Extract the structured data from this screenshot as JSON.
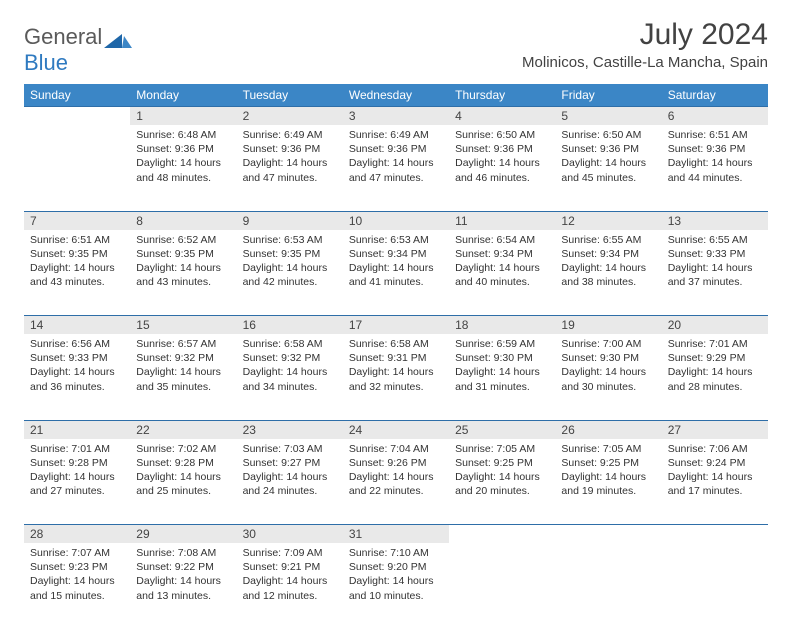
{
  "brand": {
    "part1": "General",
    "part2": "Blue"
  },
  "title": "July 2024",
  "location": "Molinicos, Castille-La Mancha, Spain",
  "colors": {
    "header_bg": "#3b86c6",
    "header_text": "#ffffff",
    "daynum_bg": "#e9e9e9",
    "rule": "#2e6ea8",
    "logo_gray": "#5a5a5a",
    "logo_blue": "#2f7ac0",
    "body_text": "#333333",
    "page_bg": "#ffffff"
  },
  "typography": {
    "title_fontsize": 30,
    "location_fontsize": 15,
    "dayheader_fontsize": 12,
    "daynum_fontsize": 12,
    "cell_fontsize": 10.5
  },
  "day_headers": [
    "Sunday",
    "Monday",
    "Tuesday",
    "Wednesday",
    "Thursday",
    "Friday",
    "Saturday"
  ],
  "weeks": [
    {
      "nums": [
        "",
        "1",
        "2",
        "3",
        "4",
        "5",
        "6"
      ],
      "sunrise": [
        "",
        "Sunrise: 6:48 AM",
        "Sunrise: 6:49 AM",
        "Sunrise: 6:49 AM",
        "Sunrise: 6:50 AM",
        "Sunrise: 6:50 AM",
        "Sunrise: 6:51 AM"
      ],
      "sunset": [
        "",
        "Sunset: 9:36 PM",
        "Sunset: 9:36 PM",
        "Sunset: 9:36 PM",
        "Sunset: 9:36 PM",
        "Sunset: 9:36 PM",
        "Sunset: 9:36 PM"
      ],
      "day1": [
        "",
        "Daylight: 14 hours",
        "Daylight: 14 hours",
        "Daylight: 14 hours",
        "Daylight: 14 hours",
        "Daylight: 14 hours",
        "Daylight: 14 hours"
      ],
      "day2": [
        "",
        "and 48 minutes.",
        "and 47 minutes.",
        "and 47 minutes.",
        "and 46 minutes.",
        "and 45 minutes.",
        "and 44 minutes."
      ]
    },
    {
      "nums": [
        "7",
        "8",
        "9",
        "10",
        "11",
        "12",
        "13"
      ],
      "sunrise": [
        "Sunrise: 6:51 AM",
        "Sunrise: 6:52 AM",
        "Sunrise: 6:53 AM",
        "Sunrise: 6:53 AM",
        "Sunrise: 6:54 AM",
        "Sunrise: 6:55 AM",
        "Sunrise: 6:55 AM"
      ],
      "sunset": [
        "Sunset: 9:35 PM",
        "Sunset: 9:35 PM",
        "Sunset: 9:35 PM",
        "Sunset: 9:34 PM",
        "Sunset: 9:34 PM",
        "Sunset: 9:34 PM",
        "Sunset: 9:33 PM"
      ],
      "day1": [
        "Daylight: 14 hours",
        "Daylight: 14 hours",
        "Daylight: 14 hours",
        "Daylight: 14 hours",
        "Daylight: 14 hours",
        "Daylight: 14 hours",
        "Daylight: 14 hours"
      ],
      "day2": [
        "and 43 minutes.",
        "and 43 minutes.",
        "and 42 minutes.",
        "and 41 minutes.",
        "and 40 minutes.",
        "and 38 minutes.",
        "and 37 minutes."
      ]
    },
    {
      "nums": [
        "14",
        "15",
        "16",
        "17",
        "18",
        "19",
        "20"
      ],
      "sunrise": [
        "Sunrise: 6:56 AM",
        "Sunrise: 6:57 AM",
        "Sunrise: 6:58 AM",
        "Sunrise: 6:58 AM",
        "Sunrise: 6:59 AM",
        "Sunrise: 7:00 AM",
        "Sunrise: 7:01 AM"
      ],
      "sunset": [
        "Sunset: 9:33 PM",
        "Sunset: 9:32 PM",
        "Sunset: 9:32 PM",
        "Sunset: 9:31 PM",
        "Sunset: 9:30 PM",
        "Sunset: 9:30 PM",
        "Sunset: 9:29 PM"
      ],
      "day1": [
        "Daylight: 14 hours",
        "Daylight: 14 hours",
        "Daylight: 14 hours",
        "Daylight: 14 hours",
        "Daylight: 14 hours",
        "Daylight: 14 hours",
        "Daylight: 14 hours"
      ],
      "day2": [
        "and 36 minutes.",
        "and 35 minutes.",
        "and 34 minutes.",
        "and 32 minutes.",
        "and 31 minutes.",
        "and 30 minutes.",
        "and 28 minutes."
      ]
    },
    {
      "nums": [
        "21",
        "22",
        "23",
        "24",
        "25",
        "26",
        "27"
      ],
      "sunrise": [
        "Sunrise: 7:01 AM",
        "Sunrise: 7:02 AM",
        "Sunrise: 7:03 AM",
        "Sunrise: 7:04 AM",
        "Sunrise: 7:05 AM",
        "Sunrise: 7:05 AM",
        "Sunrise: 7:06 AM"
      ],
      "sunset": [
        "Sunset: 9:28 PM",
        "Sunset: 9:28 PM",
        "Sunset: 9:27 PM",
        "Sunset: 9:26 PM",
        "Sunset: 9:25 PM",
        "Sunset: 9:25 PM",
        "Sunset: 9:24 PM"
      ],
      "day1": [
        "Daylight: 14 hours",
        "Daylight: 14 hours",
        "Daylight: 14 hours",
        "Daylight: 14 hours",
        "Daylight: 14 hours",
        "Daylight: 14 hours",
        "Daylight: 14 hours"
      ],
      "day2": [
        "and 27 minutes.",
        "and 25 minutes.",
        "and 24 minutes.",
        "and 22 minutes.",
        "and 20 minutes.",
        "and 19 minutes.",
        "and 17 minutes."
      ]
    },
    {
      "nums": [
        "28",
        "29",
        "30",
        "31",
        "",
        "",
        ""
      ],
      "sunrise": [
        "Sunrise: 7:07 AM",
        "Sunrise: 7:08 AM",
        "Sunrise: 7:09 AM",
        "Sunrise: 7:10 AM",
        "",
        "",
        ""
      ],
      "sunset": [
        "Sunset: 9:23 PM",
        "Sunset: 9:22 PM",
        "Sunset: 9:21 PM",
        "Sunset: 9:20 PM",
        "",
        "",
        ""
      ],
      "day1": [
        "Daylight: 14 hours",
        "Daylight: 14 hours",
        "Daylight: 14 hours",
        "Daylight: 14 hours",
        "",
        "",
        ""
      ],
      "day2": [
        "and 15 minutes.",
        "and 13 minutes.",
        "and 12 minutes.",
        "and 10 minutes.",
        "",
        "",
        ""
      ]
    }
  ]
}
